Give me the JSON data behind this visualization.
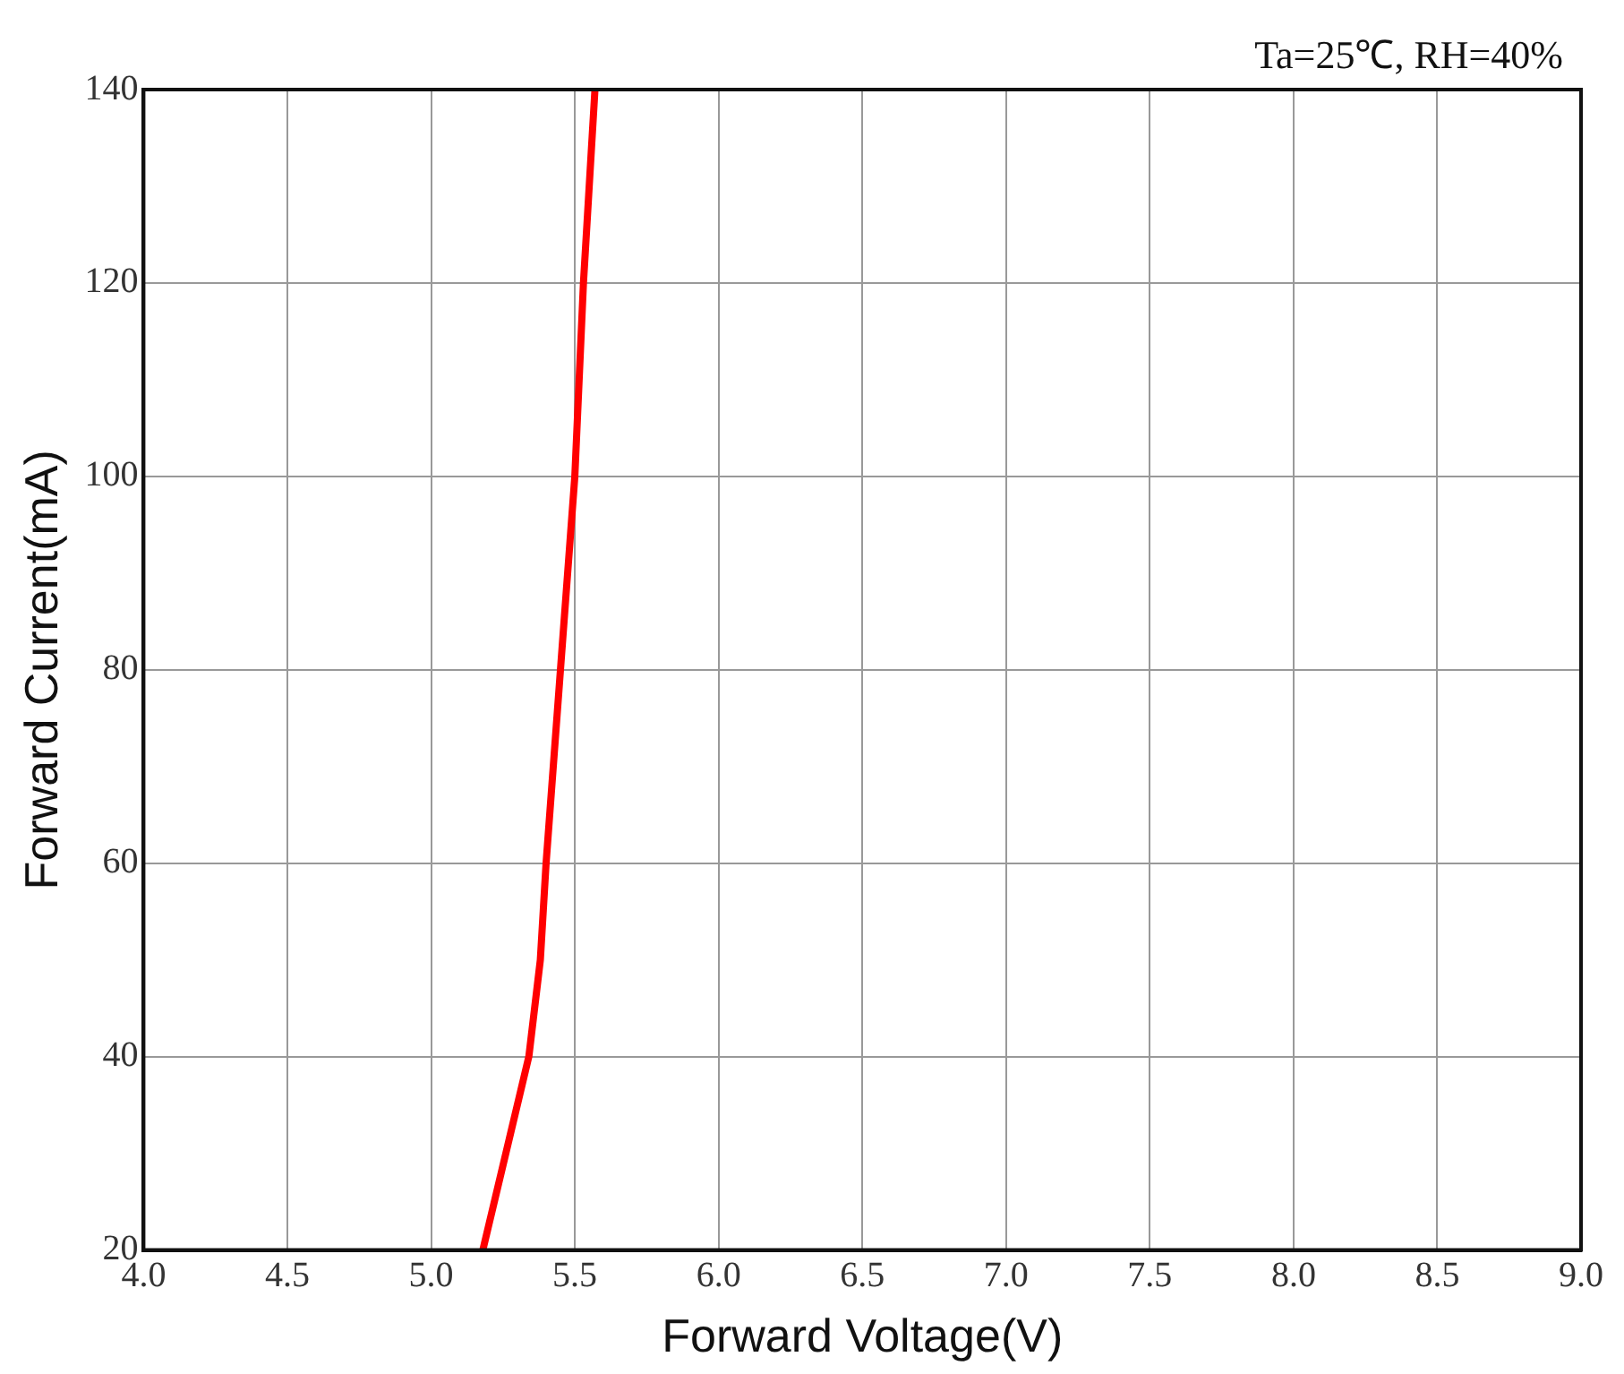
{
  "chart_data": {
    "type": "line",
    "xlabel": "Forward Voltage(V)",
    "ylabel": "Forward Current(mA)",
    "annotations": [
      "Ta=25℃, RH=40%"
    ],
    "series": [
      {
        "color": "#ff0000",
        "x": [
          5.18,
          5.34,
          5.38,
          5.4,
          5.45,
          5.5,
          5.53,
          5.57
        ],
        "values": [
          20,
          40,
          50,
          60,
          80,
          100,
          120,
          140
        ]
      }
    ],
    "xlim": [
      4.0,
      9.0
    ],
    "xticks": [
      {
        "value": 4,
        "label": "4.0"
      },
      {
        "value": 4.5,
        "label": "4.5"
      },
      {
        "value": 5,
        "label": "5.0"
      },
      {
        "value": 5.5,
        "label": "5.5"
      },
      {
        "value": 6,
        "label": "6.0"
      },
      {
        "value": 6.5,
        "label": "6.5"
      },
      {
        "value": 7,
        "label": "7.0"
      },
      {
        "value": 7.5,
        "label": "7.5"
      },
      {
        "value": 8,
        "label": "8.0"
      },
      {
        "value": 8.5,
        "label": "8.5"
      },
      {
        "value": 9,
        "label": "9.0"
      }
    ],
    "ylim": [
      20,
      140
    ],
    "yticks": [
      20,
      40,
      60,
      80,
      100,
      120,
      140
    ],
    "grid": true,
    "legend": false,
    "marker": "none",
    "line_style": "solid"
  }
}
